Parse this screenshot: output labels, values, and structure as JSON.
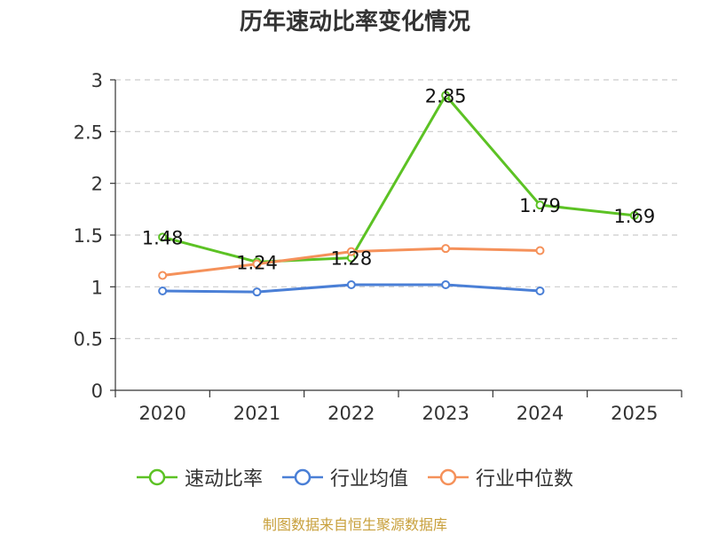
{
  "title": "历年速动比率变化情况",
  "source": "制图数据来自恒生聚源数据库",
  "chart_data": {
    "type": "line",
    "title": "历年速动比率变化情况",
    "categories": [
      "2020",
      "2021",
      "2022",
      "2023",
      "2024",
      "2025"
    ],
    "ylim": [
      0,
      3
    ],
    "yticks": [
      "0",
      "0.5",
      "1",
      "1.5",
      "2",
      "2.5",
      "3"
    ],
    "grid": true,
    "legend_position": "bottom",
    "series": [
      {
        "name": "速动比率",
        "color": "#5cc224",
        "values": [
          1.48,
          1.24,
          1.28,
          2.85,
          1.79,
          1.69
        ],
        "labels": [
          "1.48",
          "1.24",
          "1.28",
          "2.85",
          "1.79",
          "1.69"
        ]
      },
      {
        "name": "行业均值",
        "color": "#4a7fd6",
        "values": [
          0.96,
          0.95,
          1.02,
          1.02,
          0.96,
          null
        ]
      },
      {
        "name": "行业中位数",
        "color": "#f5915a",
        "values": [
          1.11,
          1.22,
          1.34,
          1.37,
          1.35,
          null
        ]
      }
    ]
  }
}
